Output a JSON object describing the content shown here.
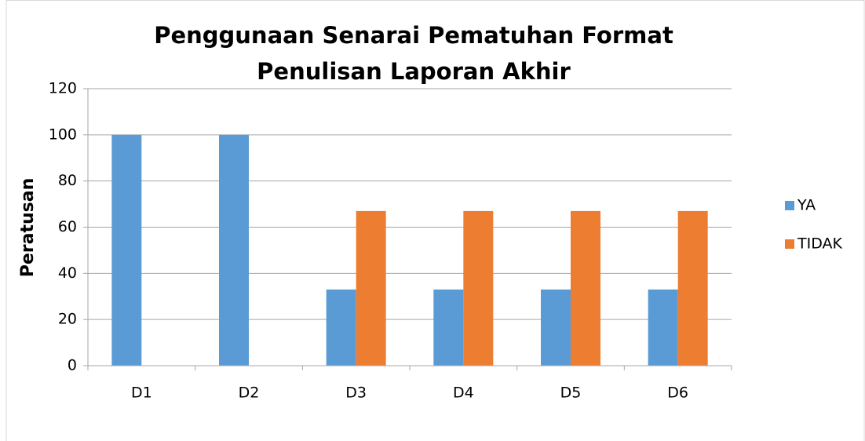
{
  "chart_data": {
    "type": "bar",
    "title": "Penggunaan Senarai Pematuhan Format Penulisan Laporan Akhir",
    "y_label": "Peratusan",
    "categories": [
      "D1",
      "D2",
      "D3",
      "D4",
      "D5",
      "D6"
    ],
    "series": [
      {
        "name": "YA",
        "color": "#5b9bd5",
        "values": [
          100,
          100,
          33,
          33,
          33,
          33
        ]
      },
      {
        "name": "TIDAK",
        "color": "#ed7d31",
        "values": [
          0,
          0,
          67,
          67,
          67,
          67
        ]
      }
    ],
    "ylim": [
      0,
      120
    ],
    "yticks": [
      0,
      20,
      40,
      60,
      80,
      100,
      120
    ],
    "grid": true,
    "legend": "right"
  }
}
